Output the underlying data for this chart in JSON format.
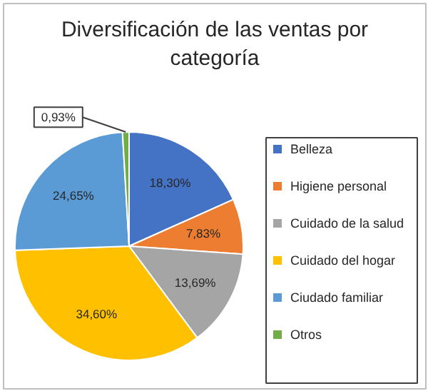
{
  "chart_data": {
    "type": "pie",
    "title": "Diversificación de las ventas por categoría",
    "categories": [
      "Belleza",
      "Higiene personal",
      "Cuidado de la salud",
      "Cuidado del hogar",
      "Ciudado familiar",
      "Otros"
    ],
    "values": [
      18.3,
      7.83,
      13.69,
      34.6,
      24.65,
      0.93
    ],
    "value_labels": [
      "18,30%",
      "7,83%",
      "13,69%",
      "34,60%",
      "24,65%",
      "0,93%"
    ],
    "colors": [
      "#4472c4",
      "#ed7d31",
      "#a5a5a5",
      "#ffc000",
      "#5b9bd5",
      "#70ad47"
    ],
    "legend": "right"
  }
}
